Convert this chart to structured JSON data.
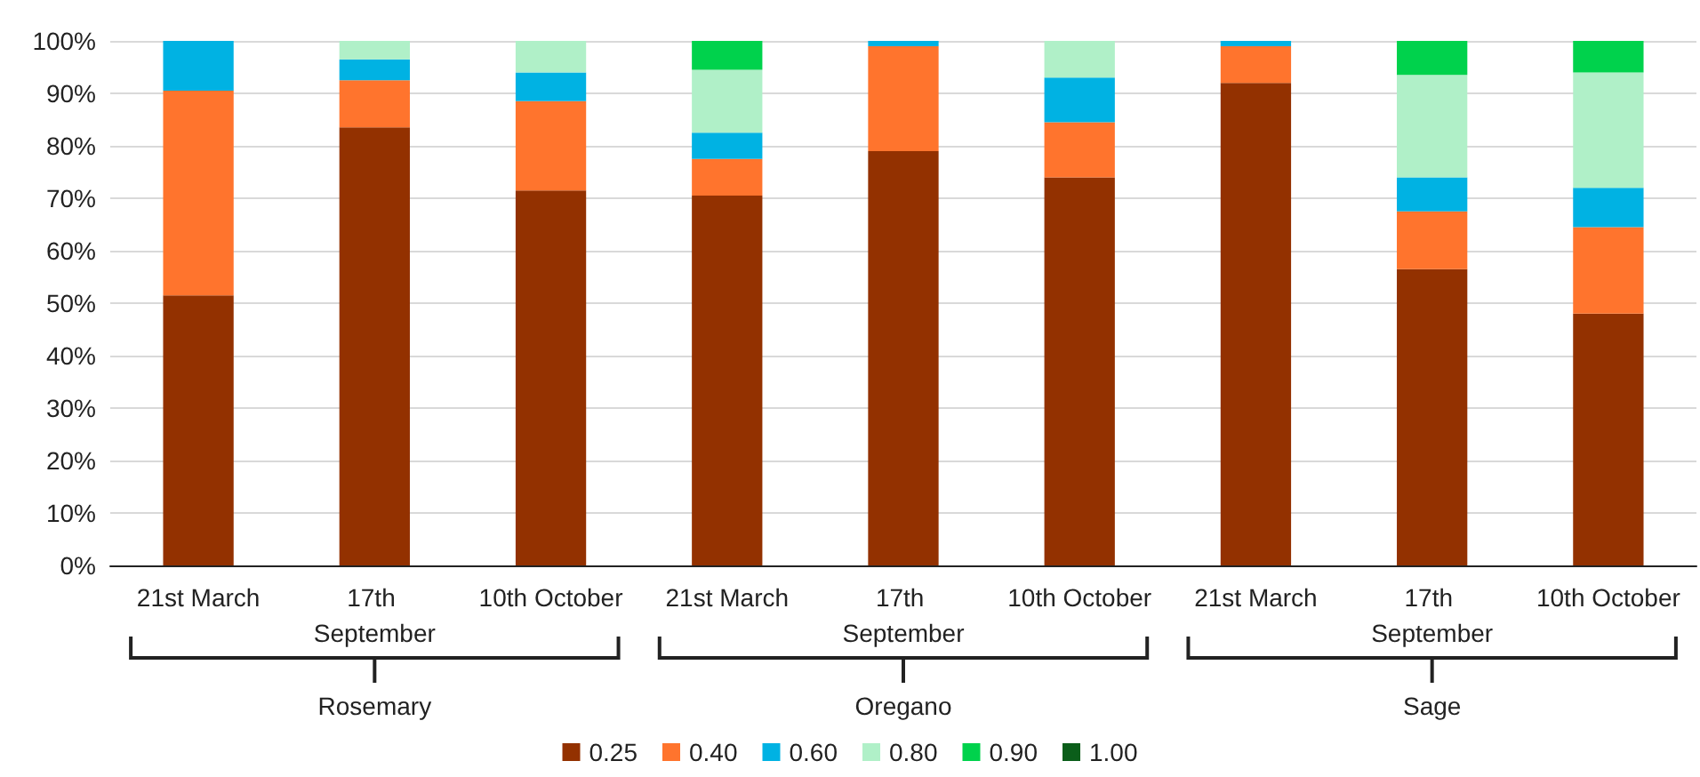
{
  "chart_data": {
    "type": "bar",
    "stacked": true,
    "categories": [
      "21st March",
      "17th September",
      "10th October",
      "21st March",
      "17th September",
      "10th October",
      "21st March",
      "17th September",
      "10th October"
    ],
    "annotations": [
      "Rosemary",
      "Oregano",
      "Sage"
    ],
    "series": [
      {
        "name": "0.25",
        "color": "#933100",
        "values": [
          51.5,
          83.5,
          71.5,
          70.5,
          79,
          74,
          92,
          56.5,
          48
        ]
      },
      {
        "name": "0.40",
        "color": "#ff742d",
        "values": [
          39,
          9,
          17,
          7,
          20,
          10.5,
          7,
          11,
          16.5
        ]
      },
      {
        "name": "0.60",
        "color": "#00b2e3",
        "values": [
          9.5,
          4,
          5.5,
          5,
          1,
          8.5,
          1,
          6.5,
          7.5
        ]
      },
      {
        "name": "0.80",
        "color": "#b0f0c8",
        "values": [
          null,
          3.5,
          6,
          12,
          null,
          7,
          null,
          19.5,
          22
        ]
      },
      {
        "name": "0.90",
        "color": "#00d24c",
        "values": [
          null,
          null,
          null,
          5.5,
          null,
          null,
          null,
          6.5,
          6
        ]
      },
      {
        "name": "1.00",
        "color": "#0b5e1a",
        "values": [
          null,
          null,
          null,
          null,
          null,
          null,
          null,
          null,
          null
        ]
      }
    ],
    "ylim": [
      0,
      100
    ],
    "yticks": [
      {
        "value": 0,
        "label": "0%"
      },
      {
        "value": 10,
        "label": "10%"
      },
      {
        "value": 20,
        "label": "20%"
      },
      {
        "value": 30,
        "label": "30%"
      },
      {
        "value": 40,
        "label": "40%"
      },
      {
        "value": 50,
        "label": "50%"
      },
      {
        "value": 60,
        "label": "60%"
      },
      {
        "value": 70,
        "label": "70%"
      },
      {
        "value": 80,
        "label": "80%"
      },
      {
        "value": 90,
        "label": "90%"
      },
      {
        "value": 100,
        "label": "100%"
      }
    ],
    "grid": "y",
    "legend": "bottom"
  }
}
